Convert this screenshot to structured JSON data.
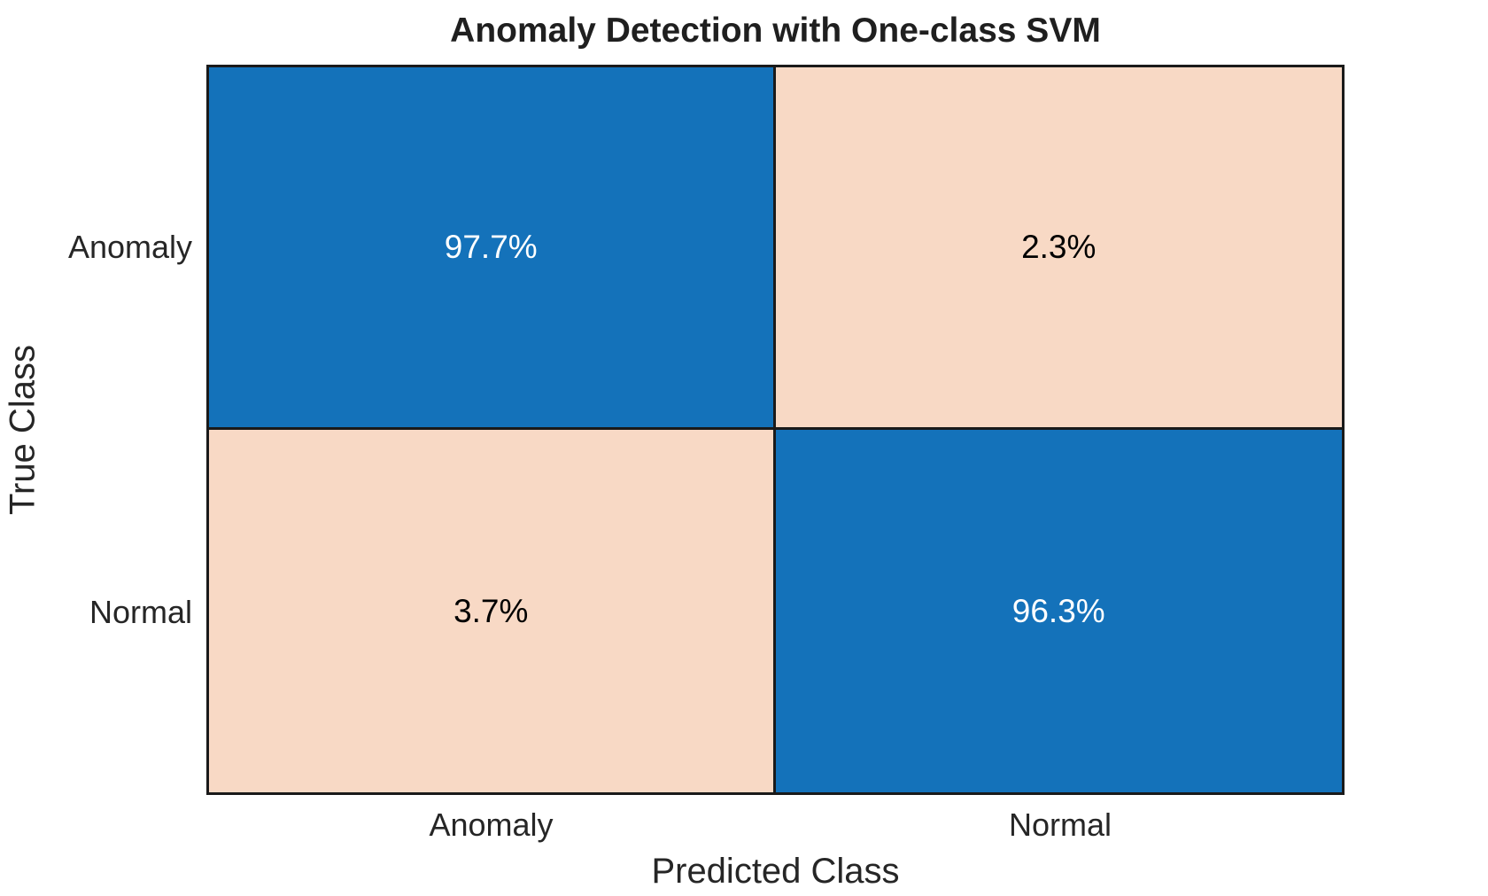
{
  "chart_data": {
    "type": "heatmap",
    "subtype": "confusion-matrix",
    "title": "Anomaly Detection with One-class SVM",
    "xlabel": "Predicted Class",
    "ylabel": "True Class",
    "x_categories": [
      "Anomaly",
      "Normal"
    ],
    "y_categories": [
      "Anomaly",
      "Normal"
    ],
    "values_percent": [
      [
        97.7,
        2.3
      ],
      [
        3.7,
        96.3
      ]
    ],
    "cell_labels": [
      [
        "97.7%",
        "2.3%"
      ],
      [
        "3.7%",
        "96.3%"
      ]
    ],
    "legend": "none",
    "grid": "cell borders only",
    "colors": {
      "background": "#FFFFFF",
      "high_cell": "#1472BA",
      "low_cell": "#F8D9C5",
      "line": "#1A1A1A",
      "text_on_high": "#FFFFFF",
      "text_on_low": "#000000",
      "title_text": "#1F1F1F",
      "axis_text": "#262626"
    }
  }
}
